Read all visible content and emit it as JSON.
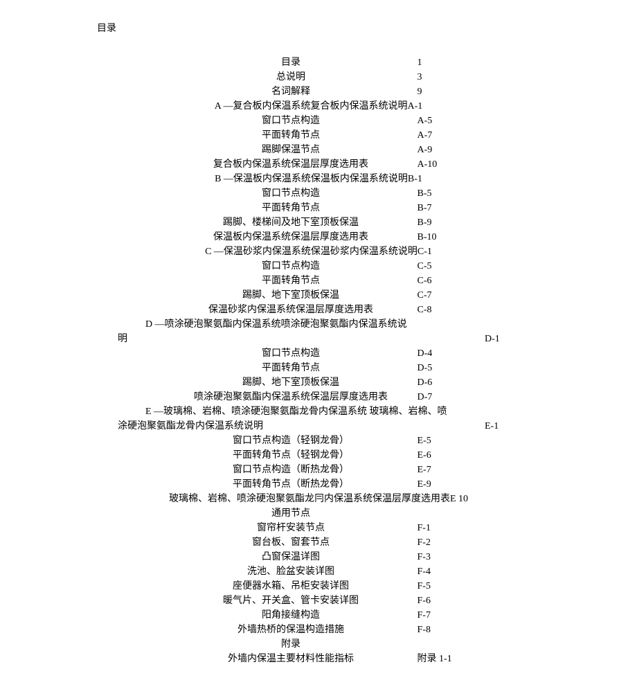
{
  "pageHeading": "目录",
  "entries": [
    {
      "title": "目录",
      "page": "1"
    },
    {
      "title": "总说明",
      "page": "3"
    },
    {
      "title": "名词解释",
      "page": "9"
    },
    {
      "title": "A —复合板内保温系统复合板内保温系统说明",
      "page": "A-1",
      "inline": true
    },
    {
      "title": "窗口节点构造",
      "page": "A-5"
    },
    {
      "title": "平面转角节点",
      "page": "A-7"
    },
    {
      "title": "踢脚保温节点",
      "page": "A-9"
    },
    {
      "title": "复合板内保温系统保温层厚度选用表",
      "page": "A-10"
    },
    {
      "title": "B —保温板内保温系统保温板内保温系统说明",
      "page": "B-1",
      "inline": true
    },
    {
      "title": "窗口节点构造",
      "page": "B-5"
    },
    {
      "title": "平面转角节点",
      "page": "B-7"
    },
    {
      "title": "踢脚、楼梯间及地下室顶板保温",
      "page": "B-9"
    },
    {
      "title": "保温板内保温系统保温层厚度选用表",
      "page": "B-10"
    },
    {
      "title": "C —保温砂浆内保温系统保温砂浆内保温系统说明",
      "page": "C-1",
      "inline": true
    },
    {
      "title": "窗口节点构造",
      "page": "C-5"
    },
    {
      "title": "平面转角节点",
      "page": "C-6"
    },
    {
      "title": "踢脚、地下室顶板保温",
      "page": "C-7"
    },
    {
      "title": "保温砂浆内保温系统保温层厚度选用表",
      "page": "C-8"
    },
    {
      "wrap": true,
      "line1": "D —喷涂硬泡聚氨酯内保温系统喷涂硬泡聚氨酯内保温系统说",
      "line2": "明",
      "page": "D-1"
    },
    {
      "title": "窗口节点构造",
      "page": "D-4"
    },
    {
      "title": "平面转角节点",
      "page": "D-5"
    },
    {
      "title": "踢脚、地下室顶板保温",
      "page": "D-6"
    },
    {
      "title": "喷涂硬泡聚氨酯内保温系统保温层厚度选用表",
      "page": "D-7"
    },
    {
      "wrap": true,
      "line1": "E —玻璃棉、岩棉、喷涂硬泡聚氨酯龙骨内保温系统 玻璃棉、岩棉、喷",
      "line2": "涂硬泡聚氨酯龙骨内保温系统说明",
      "page": "E-1"
    },
    {
      "title": "窗口节点构造（轻钢龙骨）",
      "page": "E-5"
    },
    {
      "title": "平面转角节点（轻钢龙骨）",
      "page": "E-6"
    },
    {
      "title": "窗口节点构造（断热龙骨）",
      "page": "E-7"
    },
    {
      "title": "平面转角节点（断热龙骨）",
      "page": "E-9"
    },
    {
      "title": "玻璃棉、岩棉、喷涂硬泡聚氨酯龙冃内保温系统保温层厚度选用表",
      "page": "E 10",
      "inline": true
    },
    {
      "title": "通用节点",
      "page": ""
    },
    {
      "title": "窗帘杆安装节点",
      "page": "F-1"
    },
    {
      "title": "窗台板、窗套节点",
      "page": "F-2"
    },
    {
      "title": "凸窗保温详图",
      "page": "F-3"
    },
    {
      "title": "洗池、脸盆安装详图",
      "page": "F-4"
    },
    {
      "title": "座便器水箱、吊柜安装详图",
      "page": "F-5"
    },
    {
      "title": "暖气片、开关盒、管卡安装详图",
      "page": "F-6"
    },
    {
      "title": "阳角接缝构造",
      "page": "F-7"
    },
    {
      "title": "外墙热桥的保温构造措施",
      "page": "F-8"
    },
    {
      "title": "附录",
      "page": ""
    },
    {
      "title": "外墙内保温主要材料性能指标",
      "page": "附录 1-1"
    }
  ]
}
